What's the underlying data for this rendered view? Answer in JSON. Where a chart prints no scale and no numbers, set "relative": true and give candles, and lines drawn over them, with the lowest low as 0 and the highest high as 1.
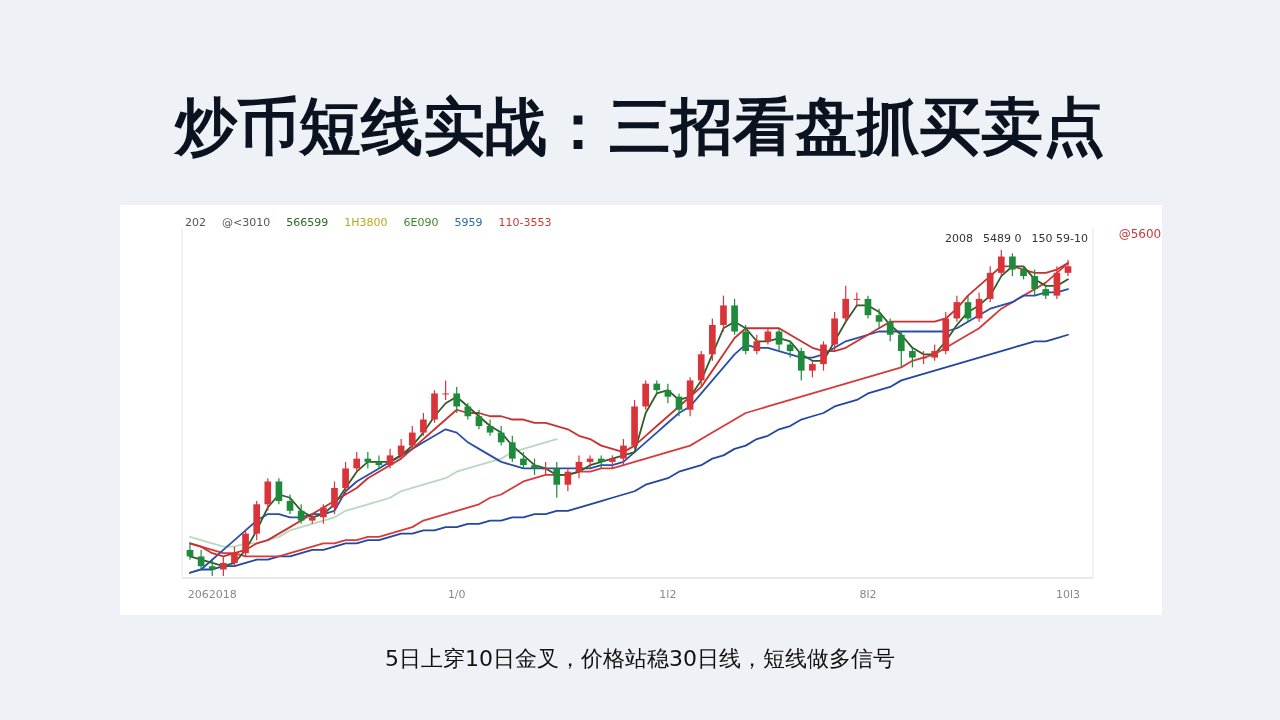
{
  "chart_data": {
    "type": "candlestick",
    "relative": true,
    "title": "炒币短线实战：三招看盘抓买卖点",
    "annotations": [
      "202",
      "@<3010",
      "566599",
      "1H3800",
      "6E090",
      "5959",
      "110-3553",
      "2008",
      "5489 0",
      "150 59-10",
      "@5600",
      "5日上穿10日金叉，价格站稳30日线，短线做多信号"
    ],
    "categories": [
      null,
      null,
      "2062018",
      null,
      null,
      null,
      null,
      null,
      null,
      null,
      null,
      null,
      null,
      null,
      null,
      null,
      null,
      null,
      null,
      null,
      null,
      null,
      null,
      null,
      "1/0",
      null,
      null,
      null,
      null,
      null,
      null,
      null,
      null,
      null,
      null,
      null,
      null,
      null,
      null,
      null,
      null,
      null,
      null,
      "1l2",
      null,
      null,
      null,
      null,
      null,
      null,
      null,
      null,
      null,
      null,
      null,
      null,
      null,
      null,
      null,
      null,
      null,
      "8l2",
      null,
      null,
      null,
      null,
      null,
      null,
      null,
      null,
      null,
      null,
      null,
      null,
      null,
      null,
      null,
      null,
      null,
      "10l3"
    ],
    "ohlc": [
      [
        0.08,
        0.1,
        0.05,
        0.06
      ],
      [
        0.06,
        0.08,
        0.02,
        0.03
      ],
      [
        0.03,
        0.05,
        0,
        0.02
      ],
      [
        0.02,
        0.06,
        0.0,
        0.04
      ],
      [
        0.04,
        0.09,
        0.03,
        0.07
      ],
      [
        0.07,
        0.14,
        0.06,
        0.13
      ],
      [
        0.13,
        0.23,
        0.11,
        0.22
      ],
      [
        0.22,
        0.3,
        0.2,
        0.29
      ],
      [
        0.29,
        0.3,
        0.22,
        0.23
      ],
      [
        0.23,
        0.25,
        0.19,
        0.2
      ],
      [
        0.2,
        0.22,
        0.16,
        0.17
      ],
      [
        0.17,
        0.19,
        0.16,
        0.18
      ],
      [
        0.18,
        0.22,
        0.16,
        0.21
      ],
      [
        0.21,
        0.29,
        0.19,
        0.27
      ],
      [
        0.27,
        0.35,
        0.25,
        0.33
      ],
      [
        0.33,
        0.38,
        0.32,
        0.36
      ],
      [
        0.36,
        0.38,
        0.33,
        0.35
      ],
      [
        0.35,
        0.37,
        0.33,
        0.34
      ],
      [
        0.34,
        0.39,
        0.33,
        0.37
      ],
      [
        0.37,
        0.42,
        0.36,
        0.4
      ],
      [
        0.4,
        0.46,
        0.39,
        0.44
      ],
      [
        0.44,
        0.5,
        0.43,
        0.48
      ],
      [
        0.48,
        0.57,
        0.47,
        0.56
      ],
      [
        0.56,
        0.6,
        0.54,
        0.56
      ],
      [
        0.56,
        0.58,
        0.5,
        0.52
      ],
      [
        0.52,
        0.53,
        0.48,
        0.49
      ],
      [
        0.49,
        0.51,
        0.45,
        0.46
      ],
      [
        0.46,
        0.48,
        0.43,
        0.44
      ],
      [
        0.44,
        0.46,
        0.4,
        0.41
      ],
      [
        0.41,
        0.43,
        0.35,
        0.36
      ],
      [
        0.36,
        0.38,
        0.33,
        0.34
      ],
      [
        0.34,
        0.36,
        0.31,
        0.33
      ],
      [
        0.33,
        0.35,
        0.31,
        0.33
      ],
      [
        0.33,
        0.35,
        0.24,
        0.28
      ],
      [
        0.28,
        0.33,
        0.26,
        0.32
      ],
      [
        0.32,
        0.37,
        0.3,
        0.35
      ],
      [
        0.35,
        0.37,
        0.33,
        0.36
      ],
      [
        0.36,
        0.37,
        0.33,
        0.35
      ],
      [
        0.35,
        0.37,
        0.33,
        0.36
      ],
      [
        0.36,
        0.42,
        0.34,
        0.4
      ],
      [
        0.4,
        0.54,
        0.39,
        0.52
      ],
      [
        0.52,
        0.6,
        0.51,
        0.59
      ],
      [
        0.59,
        0.6,
        0.56,
        0.57
      ],
      [
        0.57,
        0.59,
        0.53,
        0.55
      ],
      [
        0.55,
        0.56,
        0.49,
        0.51
      ],
      [
        0.51,
        0.61,
        0.49,
        0.6
      ],
      [
        0.6,
        0.69,
        0.58,
        0.68
      ],
      [
        0.68,
        0.79,
        0.66,
        0.77
      ],
      [
        0.77,
        0.86,
        0.75,
        0.83
      ],
      [
        0.83,
        0.85,
        0.74,
        0.75
      ],
      [
        0.75,
        0.77,
        0.68,
        0.69
      ],
      [
        0.69,
        0.74,
        0.68,
        0.72
      ],
      [
        0.72,
        0.76,
        0.71,
        0.75
      ],
      [
        0.75,
        0.76,
        0.69,
        0.71
      ],
      [
        0.71,
        0.72,
        0.67,
        0.69
      ],
      [
        0.69,
        0.7,
        0.6,
        0.63
      ],
      [
        0.63,
        0.66,
        0.61,
        0.65
      ],
      [
        0.65,
        0.72,
        0.63,
        0.71
      ],
      [
        0.71,
        0.81,
        0.69,
        0.79
      ],
      [
        0.79,
        0.89,
        0.78,
        0.85
      ],
      [
        0.85,
        0.87,
        0.83,
        0.85
      ],
      [
        0.85,
        0.86,
        0.79,
        0.8
      ],
      [
        0.8,
        0.82,
        0.76,
        0.78
      ],
      [
        0.78,
        0.79,
        0.72,
        0.74
      ],
      [
        0.74,
        0.75,
        0.64,
        0.69
      ],
      [
        0.69,
        0.7,
        0.64,
        0.67
      ],
      [
        0.67,
        0.69,
        0.65,
        0.67
      ],
      [
        0.67,
        0.71,
        0.66,
        0.69
      ],
      [
        0.69,
        0.81,
        0.68,
        0.79
      ],
      [
        0.79,
        0.86,
        0.78,
        0.84
      ],
      [
        0.84,
        0.86,
        0.78,
        0.79
      ],
      [
        0.79,
        0.87,
        0.78,
        0.85
      ],
      [
        0.85,
        0.95,
        0.84,
        0.93
      ],
      [
        0.93,
        1,
        0.92,
        0.98
      ],
      [
        0.98,
        0.99,
        0.92,
        0.94
      ],
      [
        0.94,
        0.95,
        0.91,
        0.92
      ],
      [
        0.92,
        0.94,
        0.86,
        0.88
      ],
      [
        0.88,
        0.89,
        0.85,
        0.86
      ],
      [
        0.86,
        0.95,
        0.85,
        0.93
      ],
      [
        0.93,
        0.97,
        0.92,
        0.95
      ]
    ],
    "colors": [
      "#1f8a3b",
      "#1f8a3b",
      "#1f8a3b",
      "#d9343a",
      "#d9343a",
      "#d9343a",
      "#d9343a",
      "#d9343a",
      "#1f8a3b",
      "#1f8a3b",
      "#1f8a3b",
      "#d9343a",
      "#d9343a",
      "#d9343a",
      "#d9343a",
      "#d9343a",
      "#1f8a3b",
      "#1f8a3b",
      "#d9343a",
      "#d9343a",
      "#d9343a",
      "#d9343a",
      "#d9343a",
      "#d9343a",
      "#1f8a3b",
      "#1f8a3b",
      "#1f8a3b",
      "#1f8a3b",
      "#1f8a3b",
      "#1f8a3b",
      "#1f8a3b",
      "#1f8a3b",
      "#d9343a",
      "#1f8a3b",
      "#d9343a",
      "#d9343a",
      "#d9343a",
      "#1f8a3b",
      "#d9343a",
      "#d9343a",
      "#d9343a",
      "#d9343a",
      "#1f8a3b",
      "#1f8a3b",
      "#1f8a3b",
      "#d9343a",
      "#d9343a",
      "#d9343a",
      "#d9343a",
      "#1f8a3b",
      "#1f8a3b",
      "#d9343a",
      "#d9343a",
      "#1f8a3b",
      "#1f8a3b",
      "#1f8a3b",
      "#d9343a",
      "#d9343a",
      "#d9343a",
      "#d9343a",
      "#d9343a",
      "#1f8a3b",
      "#1f8a3b",
      "#1f8a3b",
      "#1f8a3b",
      "#1f8a3b",
      "#d9343a",
      "#d9343a",
      "#d9343a",
      "#d9343a",
      "#1f8a3b",
      "#d9343a",
      "#d9343a",
      "#d9343a",
      "#1f8a3b",
      "#1f8a3b",
      "#1f8a3b",
      "#1f8a3b",
      "#d9343a",
      "#d9343a"
    ],
    "series": [
      {
        "type": "line",
        "color": "#2346a0",
        "values": [
          0.01,
          0.02,
          0.02,
          0.03,
          0.03,
          0.04,
          0.05,
          0.05,
          0.06,
          0.06,
          0.07,
          0.08,
          0.08,
          0.09,
          0.1,
          0.1,
          0.11,
          0.11,
          0.12,
          0.13,
          0.13,
          0.14,
          0.14,
          0.15,
          0.15,
          0.16,
          0.16,
          0.17,
          0.17,
          0.18,
          0.18,
          0.19,
          0.19,
          0.2,
          0.2,
          0.21,
          0.22,
          0.23,
          0.24,
          0.25,
          0.26,
          0.28,
          0.29,
          0.3,
          0.32,
          0.33,
          0.34,
          0.36,
          0.37,
          0.39,
          0.4,
          0.42,
          0.43,
          0.45,
          0.46,
          0.48,
          0.49,
          0.5,
          0.52,
          0.53,
          0.54,
          0.56,
          0.57,
          0.58,
          0.6,
          0.61,
          0.62,
          0.63,
          0.64,
          0.65,
          0.66,
          0.67,
          0.68,
          0.69,
          0.7,
          0.71,
          0.72,
          0.72,
          0.73,
          0.74
        ]
      },
      {
        "type": "line",
        "color": "#d63a3a",
        "values": [
          0.1,
          0.09,
          0.08,
          0.07,
          0.07,
          0.06,
          0.06,
          0.06,
          0.06,
          0.07,
          0.08,
          0.09,
          0.1,
          0.1,
          0.11,
          0.11,
          0.12,
          0.12,
          0.13,
          0.14,
          0.15,
          0.17,
          0.18,
          0.19,
          0.2,
          0.21,
          0.22,
          0.24,
          0.25,
          0.27,
          0.29,
          0.3,
          0.31,
          0.31,
          0.31,
          0.32,
          0.32,
          0.33,
          0.33,
          0.34,
          0.35,
          0.36,
          0.37,
          0.38,
          0.39,
          0.4,
          0.42,
          0.44,
          0.46,
          0.48,
          0.5,
          0.51,
          0.52,
          0.53,
          0.54,
          0.55,
          0.56,
          0.57,
          0.58,
          0.59,
          0.6,
          0.61,
          0.62,
          0.63,
          0.64,
          0.66,
          0.67,
          0.68,
          0.7,
          0.72,
          0.74,
          0.76,
          0.79,
          0.82,
          0.84,
          0.86,
          0.88,
          0.9,
          0.93,
          0.96
        ]
      },
      {
        "type": "line",
        "color": "#b8d8c0",
        "values": [
          0.12,
          0.11,
          0.1,
          0.09,
          0.09,
          0.1,
          0.1,
          0.11,
          0.12,
          0.14,
          0.15,
          0.16,
          0.17,
          0.18,
          0.2,
          0.21,
          0.22,
          0.23,
          0.24,
          0.26,
          0.27,
          0.28,
          0.29,
          0.3,
          0.32,
          0.33,
          0.34,
          0.35,
          0.36,
          0.38,
          0.39,
          0.4,
          0.41,
          0.42,
          null,
          null,
          null,
          null,
          null,
          null,
          null,
          null,
          null,
          null,
          null,
          null,
          null,
          null,
          null,
          null,
          null,
          null,
          null,
          null,
          null,
          null,
          null,
          null,
          null,
          null,
          null,
          null,
          null,
          null,
          null,
          null,
          null,
          null,
          null,
          null,
          null,
          null,
          null,
          null,
          null,
          null,
          null,
          null,
          null,
          null
        ]
      },
      {
        "type": "line",
        "color": "#2a4fa8",
        "values": [
          0.01,
          0.02,
          0.05,
          0.08,
          0.11,
          0.14,
          0.17,
          0.19,
          0.19,
          0.18,
          0.18,
          0.19,
          0.19,
          0.2,
          0.26,
          0.29,
          0.31,
          0.33,
          0.35,
          0.37,
          0.39,
          0.41,
          0.43,
          0.45,
          0.44,
          0.41,
          0.39,
          0.37,
          0.35,
          0.34,
          0.33,
          0.33,
          0.33,
          0.33,
          0.33,
          0.33,
          0.33,
          0.34,
          0.34,
          0.35,
          0.38,
          0.41,
          0.44,
          0.47,
          0.5,
          0.52,
          0.56,
          0.6,
          0.64,
          0.68,
          0.71,
          0.7,
          0.7,
          0.69,
          0.68,
          0.67,
          0.67,
          0.68,
          0.7,
          0.72,
          0.73,
          0.74,
          0.75,
          0.75,
          0.75,
          0.75,
          0.75,
          0.75,
          0.75,
          0.76,
          0.78,
          0.8,
          0.82,
          0.83,
          0.84,
          0.86,
          0.86,
          0.87,
          0.87,
          0.88
        ]
      },
      {
        "type": "line",
        "color": "#c8312f",
        "values": [
          0.1,
          0.09,
          0.07,
          0.06,
          0.07,
          0.08,
          0.1,
          0.11,
          0.13,
          0.15,
          0.17,
          0.19,
          0.21,
          0.23,
          0.25,
          0.27,
          0.3,
          0.32,
          0.34,
          0.36,
          0.39,
          0.42,
          0.45,
          0.48,
          0.51,
          0.5,
          0.5,
          0.49,
          0.49,
          0.48,
          0.48,
          0.47,
          0.47,
          0.46,
          0.45,
          0.43,
          0.42,
          0.4,
          0.39,
          0.38,
          0.4,
          0.43,
          0.46,
          0.49,
          0.52,
          0.55,
          0.58,
          0.63,
          0.68,
          0.73,
          0.76,
          0.76,
          0.76,
          0.76,
          0.74,
          0.72,
          0.7,
          0.69,
          0.69,
          0.7,
          0.72,
          0.74,
          0.76,
          0.78,
          0.78,
          0.78,
          0.78,
          0.78,
          0.79,
          0.82,
          0.86,
          0.89,
          0.92,
          0.95,
          0.95,
          0.94,
          0.93,
          0.93,
          0.94,
          0.96
        ]
      },
      {
        "type": "line",
        "color": "#2f5e2a",
        "values": [
          0.06,
          0.05,
          0.04,
          0.03,
          0.04,
          0.08,
          0.14,
          0.21,
          0.25,
          0.24,
          0.2,
          0.18,
          0.19,
          0.22,
          0.27,
          0.32,
          0.35,
          0.35,
          0.35,
          0.37,
          0.4,
          0.44,
          0.49,
          0.53,
          0.55,
          0.52,
          0.49,
          0.46,
          0.44,
          0.4,
          0.37,
          0.34,
          0.33,
          0.31,
          0.31,
          0.32,
          0.34,
          0.35,
          0.36,
          0.37,
          0.38,
          0.5,
          0.56,
          0.57,
          0.54,
          0.55,
          0.6,
          0.68,
          0.76,
          0.78,
          0.76,
          0.72,
          0.72,
          0.73,
          0.72,
          0.68,
          0.66,
          0.66,
          0.72,
          0.78,
          0.83,
          0.83,
          0.81,
          0.77,
          0.74,
          0.7,
          0.68,
          0.68,
          0.72,
          0.77,
          0.81,
          0.83,
          0.86,
          0.92,
          0.95,
          0.95,
          0.91,
          0.89,
          0.89,
          0.91
        ]
      }
    ]
  }
}
